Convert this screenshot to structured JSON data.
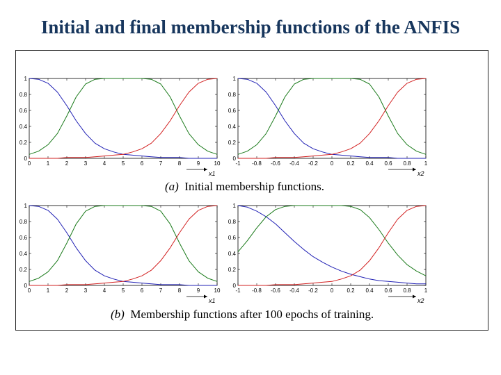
{
  "slide": {
    "title": "Initial and final membership functions of the ANFIS"
  },
  "captions": {
    "a_label": "(a)",
    "a_text": "Initial membership functions.",
    "b_label": "(b)",
    "b_text": "Membership functions after 100 epochs of training."
  },
  "colors": {
    "blue": "#1f1fb4",
    "green": "#1a7a1a",
    "red": "#d21f1f"
  },
  "chart_data": [
    {
      "type": "line",
      "panel": "a-x1",
      "xlabel": "x1",
      "xlim": [
        0,
        10
      ],
      "ylim": [
        0,
        1
      ],
      "xticks": [
        "0",
        "1",
        "2",
        "3",
        "4",
        "5",
        "6",
        "7",
        "8",
        "9",
        "10"
      ],
      "yticks": [
        "0",
        "0.2",
        "0.4",
        "0.6",
        "0.8",
        "1"
      ],
      "x": [
        0,
        0.5,
        1,
        1.5,
        2,
        2.5,
        3,
        3.5,
        4,
        4.5,
        5,
        5.5,
        6,
        6.5,
        7,
        7.5,
        8,
        8.5,
        9,
        9.5,
        10
      ],
      "series": [
        {
          "color": "blue",
          "values": [
            1.0,
            0.99,
            0.94,
            0.83,
            0.66,
            0.47,
            0.31,
            0.19,
            0.12,
            0.08,
            0.05,
            0.04,
            0.03,
            0.02,
            0.01,
            0.01,
            0.01,
            0.0,
            0.0,
            0.0,
            0.0
          ]
        },
        {
          "color": "green",
          "values": [
            0.05,
            0.09,
            0.17,
            0.31,
            0.53,
            0.77,
            0.93,
            0.99,
            1.0,
            1.0,
            1.0,
            1.0,
            1.0,
            0.99,
            0.93,
            0.77,
            0.53,
            0.31,
            0.17,
            0.09,
            0.05
          ]
        },
        {
          "color": "red",
          "values": [
            0.0,
            0.0,
            0.0,
            0.0,
            0.01,
            0.01,
            0.01,
            0.02,
            0.03,
            0.04,
            0.05,
            0.08,
            0.12,
            0.19,
            0.31,
            0.47,
            0.66,
            0.83,
            0.94,
            0.99,
            1.0
          ]
        }
      ]
    },
    {
      "type": "line",
      "panel": "a-x2",
      "xlabel": "x2",
      "xlim": [
        -1,
        1
      ],
      "ylim": [
        0,
        1
      ],
      "xticks": [
        "-1",
        "-0.8",
        "-0.6",
        "-0.4",
        "-0.2",
        "0",
        "0.2",
        "0.4",
        "0.6",
        "0.8",
        "1"
      ],
      "yticks": [
        "0",
        "0.2",
        "0.4",
        "0.6",
        "0.8",
        "1"
      ],
      "x": [
        -1,
        -0.9,
        -0.8,
        -0.7,
        -0.6,
        -0.5,
        -0.4,
        -0.3,
        -0.2,
        -0.1,
        0,
        0.1,
        0.2,
        0.3,
        0.4,
        0.5,
        0.6,
        0.7,
        0.8,
        0.9,
        1
      ],
      "series": [
        {
          "color": "blue",
          "values": [
            1.0,
            0.99,
            0.94,
            0.83,
            0.66,
            0.47,
            0.31,
            0.19,
            0.12,
            0.08,
            0.05,
            0.04,
            0.03,
            0.02,
            0.01,
            0.01,
            0.01,
            0.0,
            0.0,
            0.0,
            0.0
          ]
        },
        {
          "color": "green",
          "values": [
            0.05,
            0.09,
            0.17,
            0.31,
            0.53,
            0.77,
            0.93,
            0.99,
            1.0,
            1.0,
            1.0,
            1.0,
            1.0,
            0.99,
            0.93,
            0.77,
            0.53,
            0.31,
            0.17,
            0.09,
            0.05
          ]
        },
        {
          "color": "red",
          "values": [
            0.0,
            0.0,
            0.0,
            0.0,
            0.01,
            0.01,
            0.01,
            0.02,
            0.03,
            0.04,
            0.05,
            0.08,
            0.12,
            0.19,
            0.31,
            0.47,
            0.66,
            0.83,
            0.94,
            0.99,
            1.0
          ]
        }
      ]
    },
    {
      "type": "line",
      "panel": "b-x1",
      "xlabel": "x1",
      "xlim": [
        0,
        10
      ],
      "ylim": [
        0,
        1
      ],
      "xticks": [
        "0",
        "1",
        "2",
        "3",
        "4",
        "5",
        "6",
        "7",
        "8",
        "9",
        "10"
      ],
      "yticks": [
        "0",
        "0.2",
        "0.4",
        "0.6",
        "0.8",
        "1"
      ],
      "x": [
        0,
        0.5,
        1,
        1.5,
        2,
        2.5,
        3,
        3.5,
        4,
        4.5,
        5,
        5.5,
        6,
        6.5,
        7,
        7.5,
        8,
        8.5,
        9,
        9.5,
        10
      ],
      "series": [
        {
          "color": "blue",
          "values": [
            1.0,
            0.99,
            0.94,
            0.83,
            0.66,
            0.47,
            0.31,
            0.19,
            0.12,
            0.08,
            0.05,
            0.04,
            0.03,
            0.02,
            0.01,
            0.01,
            0.01,
            0.0,
            0.0,
            0.0,
            0.0
          ]
        },
        {
          "color": "green",
          "values": [
            0.05,
            0.09,
            0.17,
            0.31,
            0.53,
            0.77,
            0.93,
            0.99,
            1.0,
            1.0,
            1.0,
            1.0,
            1.0,
            0.99,
            0.93,
            0.77,
            0.53,
            0.31,
            0.17,
            0.09,
            0.05
          ]
        },
        {
          "color": "red",
          "values": [
            0.0,
            0.0,
            0.0,
            0.0,
            0.01,
            0.01,
            0.01,
            0.02,
            0.03,
            0.04,
            0.05,
            0.08,
            0.12,
            0.19,
            0.31,
            0.47,
            0.66,
            0.83,
            0.94,
            0.99,
            1.0
          ]
        }
      ]
    },
    {
      "type": "line",
      "panel": "b-x2",
      "xlabel": "x2",
      "xlim": [
        -1,
        1
      ],
      "ylim": [
        0,
        1
      ],
      "xticks": [
        "-1",
        "-0.8",
        "-0.6",
        "-0.4",
        "-0.2",
        "0",
        "0.2",
        "0.4",
        "0.6",
        "0.8",
        "1"
      ],
      "yticks": [
        "0",
        "0.2",
        "0.4",
        "0.6",
        "0.8",
        "1"
      ],
      "x": [
        -1,
        -0.9,
        -0.8,
        -0.7,
        -0.6,
        -0.5,
        -0.4,
        -0.3,
        -0.2,
        -0.1,
        0,
        0.1,
        0.2,
        0.3,
        0.4,
        0.5,
        0.6,
        0.7,
        0.8,
        0.9,
        1
      ],
      "series": [
        {
          "color": "blue",
          "values": [
            1.0,
            0.98,
            0.93,
            0.86,
            0.77,
            0.66,
            0.55,
            0.45,
            0.36,
            0.29,
            0.23,
            0.18,
            0.14,
            0.11,
            0.08,
            0.06,
            0.05,
            0.04,
            0.03,
            0.02,
            0.02
          ]
        },
        {
          "color": "green",
          "values": [
            0.42,
            0.56,
            0.72,
            0.86,
            0.95,
            0.99,
            1.0,
            1.0,
            1.0,
            1.0,
            1.0,
            1.0,
            0.99,
            0.95,
            0.85,
            0.7,
            0.53,
            0.38,
            0.26,
            0.18,
            0.12
          ]
        },
        {
          "color": "red",
          "values": [
            0.0,
            0.0,
            0.0,
            0.0,
            0.01,
            0.01,
            0.01,
            0.02,
            0.03,
            0.04,
            0.05,
            0.08,
            0.12,
            0.19,
            0.31,
            0.47,
            0.66,
            0.83,
            0.94,
            0.99,
            1.0
          ]
        }
      ]
    }
  ]
}
